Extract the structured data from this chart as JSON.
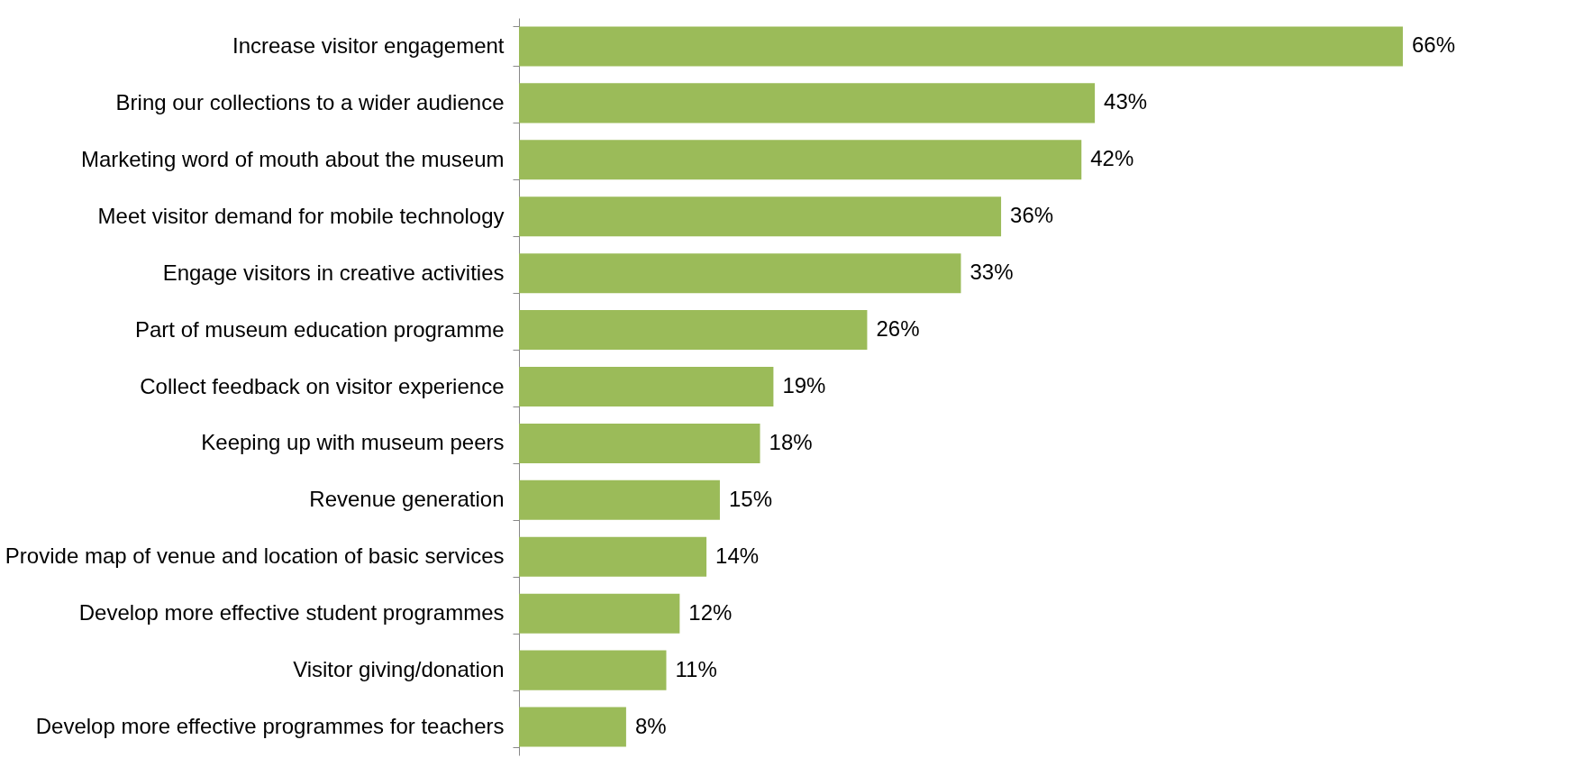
{
  "chart_data": {
    "type": "bar",
    "orientation": "horizontal",
    "categories": [
      "Increase visitor engagement",
      "Bring our collections to a wider audience",
      "Marketing word of mouth about the museum",
      "Meet visitor demand for mobile technology",
      "Engage visitors in creative activities",
      "Part of museum education programme",
      "Collect feedback on visitor experience",
      "Keeping up with museum peers",
      "Revenue generation",
      "Provide map of venue and location of basic services",
      "Develop more effective student programmes",
      "Visitor giving/donation",
      "Develop more effective programmes for teachers"
    ],
    "values": [
      66,
      43,
      42,
      36,
      33,
      26,
      19,
      18,
      15,
      14,
      12,
      11,
      8
    ],
    "value_labels": [
      "66%",
      "43%",
      "42%",
      "36%",
      "33%",
      "26%",
      "19%",
      "18%",
      "15%",
      "14%",
      "12%",
      "11%",
      "8%"
    ],
    "color": "#9bbb59"
  }
}
